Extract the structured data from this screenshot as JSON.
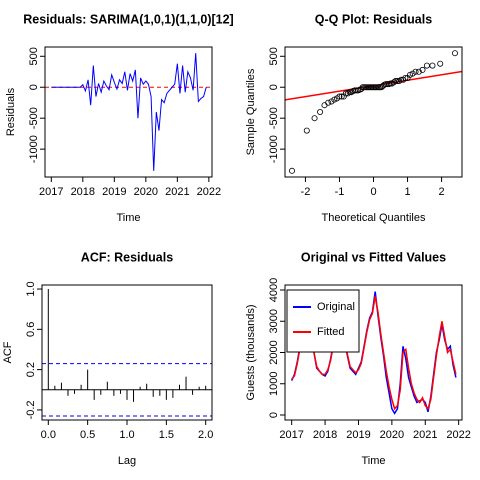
{
  "chart_data": [
    {
      "type": "line",
      "title": "Residuals: SARIMA(1,0,1)(1,1,0)[12]",
      "xlabel": "Time",
      "ylabel": "Residuals",
      "x": [
        2017,
        2017.083,
        2017.167,
        2017.25,
        2017.333,
        2017.417,
        2017.5,
        2017.583,
        2017.667,
        2017.75,
        2017.833,
        2017.917,
        2018,
        2018.083,
        2018.167,
        2018.25,
        2018.333,
        2018.417,
        2018.5,
        2018.583,
        2018.667,
        2018.75,
        2018.833,
        2018.917,
        2019,
        2019.083,
        2019.167,
        2019.25,
        2019.333,
        2019.417,
        2019.5,
        2019.583,
        2019.667,
        2019.75,
        2019.833,
        2019.917,
        2020,
        2020.083,
        2020.167,
        2020.25,
        2020.333,
        2020.417,
        2020.5,
        2020.583,
        2020.667,
        2020.75,
        2020.833,
        2020.917,
        2021,
        2021.083,
        2021.167,
        2021.25,
        2021.333,
        2021.417,
        2021.5,
        2021.583,
        2021.667,
        2021.75,
        2021.833,
        2021.917
      ],
      "series": [
        {
          "color": "#0000ff",
          "values": [
            0,
            0,
            0,
            0,
            0,
            0,
            0,
            0,
            0,
            0,
            0,
            0,
            40,
            -60,
            120,
            -290,
            350,
            -150,
            60,
            -80,
            100,
            20,
            -40,
            200,
            80,
            -30,
            120,
            60,
            250,
            -50,
            220,
            100,
            280,
            -500,
            150,
            50,
            100,
            50,
            -150,
            -1350,
            -400,
            -700,
            -200,
            -250,
            -100,
            -50,
            0,
            50,
            380,
            -100,
            350,
            -80,
            250,
            150,
            -50,
            550,
            -230,
            -180,
            -150,
            0
          ]
        }
      ],
      "hline": {
        "value": 0,
        "color": "#ff0000",
        "style": "dashed"
      },
      "xlim": [
        2016.8,
        2022.1
      ],
      "xticks": [
        2017,
        2018,
        2019,
        2020,
        2021,
        2022
      ],
      "ylim": [
        -1450,
        650
      ],
      "yticks": [
        -1000,
        -500,
        0,
        500
      ]
    },
    {
      "type": "scatter",
      "title": "Q-Q Plot: Residuals",
      "xlabel": "Theoretical Quantiles",
      "ylabel": "Sample Quantiles",
      "x": [
        -2.394,
        -1.96,
        -1.732,
        -1.569,
        -1.44,
        -1.331,
        -1.235,
        -1.15,
        -1.073,
        -1.001,
        -0.935,
        -0.872,
        -0.812,
        -0.755,
        -0.701,
        -0.649,
        -0.598,
        -0.548,
        -0.5,
        -0.454,
        -0.408,
        -0.363,
        -0.319,
        -0.275,
        -0.232,
        -0.189,
        -0.147,
        -0.105,
        -0.063,
        -0.021,
        0.021,
        0.063,
        0.105,
        0.147,
        0.189,
        0.232,
        0.275,
        0.319,
        0.363,
        0.408,
        0.454,
        0.5,
        0.548,
        0.598,
        0.649,
        0.701,
        0.755,
        0.812,
        0.872,
        0.935,
        1.001,
        1.073,
        1.15,
        1.235,
        1.331,
        1.44,
        1.569,
        1.732,
        1.96,
        2.394
      ],
      "values": [
        -1350,
        -700,
        -500,
        -400,
        -290,
        -250,
        -230,
        -200,
        -180,
        -150,
        -150,
        -150,
        -100,
        -100,
        -80,
        -80,
        -60,
        -50,
        -50,
        -50,
        -40,
        -30,
        0,
        0,
        0,
        0,
        0,
        0,
        0,
        0,
        0,
        0,
        0,
        0,
        0,
        0,
        20,
        40,
        50,
        50,
        50,
        60,
        60,
        80,
        100,
        100,
        100,
        120,
        120,
        150,
        150,
        200,
        220,
        250,
        250,
        280,
        350,
        350,
        380,
        550
      ],
      "color": "#000000",
      "reference_line": {
        "intercept": 25,
        "slope": 88,
        "color": "#ff0000"
      },
      "xlim": [
        -2.6,
        2.6
      ],
      "xticks": [
        -2,
        -1,
        0,
        1,
        2
      ],
      "ylim": [
        -1450,
        650
      ],
      "yticks": [
        -1000,
        -500,
        0,
        500
      ]
    },
    {
      "type": "bar",
      "title": "ACF: Residuals",
      "xlabel": "Lag",
      "ylabel": "ACF",
      "x": [
        0,
        0.083,
        0.167,
        0.25,
        0.333,
        0.417,
        0.5,
        0.583,
        0.667,
        0.75,
        0.833,
        0.917,
        1,
        1.083,
        1.167,
        1.25,
        1.333,
        1.417,
        1.5,
        1.583,
        1.667,
        1.75,
        1.833,
        1.917,
        2
      ],
      "values": [
        1,
        0.04,
        0.07,
        -0.06,
        -0.04,
        0.05,
        0.2,
        -0.1,
        -0.05,
        0.08,
        -0.06,
        -0.04,
        -0.1,
        -0.12,
        0.03,
        0.06,
        -0.07,
        -0.06,
        -0.1,
        -0.08,
        0.05,
        0.13,
        -0.05,
        0.03,
        0.04
      ],
      "color": "#000000",
      "hline": {
        "value": 0,
        "color": "#000000",
        "style": "solid"
      },
      "ci_lines": [
        0.26,
        -0.26
      ],
      "ci_color": "#0000ff",
      "xlim": [
        -0.08,
        2.08
      ],
      "xticks": [
        {
          "value": 0,
          "label": "0.0"
        },
        {
          "value": 0.5,
          "label": "0.5"
        },
        {
          "value": 1,
          "label": "1.0"
        },
        {
          "value": 1.5,
          "label": "1.5"
        },
        {
          "value": 2,
          "label": "2.0"
        }
      ],
      "ylim": [
        -0.3,
        1.04
      ],
      "yticks": [
        -0.2,
        0.2,
        0.6,
        {
          "value": 1,
          "label": "1.0"
        }
      ]
    },
    {
      "type": "line",
      "title": "Original vs Fitted Values",
      "xlabel": "Time",
      "ylabel": "Guests (thousands)",
      "x": [
        2017,
        2017.083,
        2017.167,
        2017.25,
        2017.333,
        2017.417,
        2017.5,
        2017.583,
        2017.667,
        2017.75,
        2017.833,
        2017.917,
        2018,
        2018.083,
        2018.167,
        2018.25,
        2018.333,
        2018.417,
        2018.5,
        2018.583,
        2018.667,
        2018.75,
        2018.833,
        2018.917,
        2019,
        2019.083,
        2019.167,
        2019.25,
        2019.333,
        2019.417,
        2019.5,
        2019.583,
        2019.667,
        2019.75,
        2019.833,
        2019.917,
        2020,
        2020.083,
        2020.167,
        2020.25,
        2020.333,
        2020.417,
        2020.5,
        2020.583,
        2020.667,
        2020.75,
        2020.833,
        2020.917,
        2021,
        2021.083,
        2021.167,
        2021.25,
        2021.333,
        2021.417,
        2021.5,
        2021.583,
        2021.667,
        2021.75,
        2021.833,
        2021.917
      ],
      "series": [
        {
          "name": "Original",
          "color": "#0000ff",
          "values": [
            1100,
            1300,
            1700,
            2200,
            2700,
            2900,
            2800,
            2500,
            2000,
            1500,
            1400,
            1300,
            1250,
            1400,
            1800,
            2300,
            2800,
            3000,
            2700,
            2400,
            1900,
            1500,
            1400,
            1300,
            1500,
            1700,
            2200,
            2700,
            3100,
            3300,
            3950,
            3200,
            2500,
            1900,
            1200,
            700,
            200,
            50,
            200,
            1000,
            2200,
            1800,
            1200,
            900,
            600,
            400,
            450,
            500,
            400,
            100,
            600,
            1300,
            2000,
            2400,
            2900,
            2400,
            2100,
            2200,
            1600,
            1200
          ]
        },
        {
          "name": "Fitted",
          "color": "#ff0000",
          "values": [
            1150,
            1250,
            1650,
            2150,
            2650,
            2850,
            2800,
            2450,
            2000,
            1550,
            1400,
            1300,
            1300,
            1450,
            1750,
            2250,
            2750,
            2950,
            2750,
            2450,
            1950,
            1550,
            1450,
            1350,
            1450,
            1650,
            2150,
            2650,
            3050,
            3250,
            3800,
            3300,
            2600,
            2000,
            1400,
            900,
            500,
            200,
            300,
            800,
            2000,
            2100,
            1500,
            1000,
            700,
            500,
            400,
            550,
            300,
            200,
            500,
            1200,
            1900,
            2500,
            3000,
            2500,
            2000,
            2100,
            1700,
            1300
          ]
        }
      ],
      "legend": "topleft",
      "xlim": [
        2016.8,
        2022.1
      ],
      "xticks": [
        2017,
        2018,
        2019,
        2020,
        2021,
        2022
      ],
      "ylim": [
        -160,
        4160
      ],
      "yticks": [
        0,
        1000,
        2000,
        3000,
        4000
      ]
    }
  ]
}
